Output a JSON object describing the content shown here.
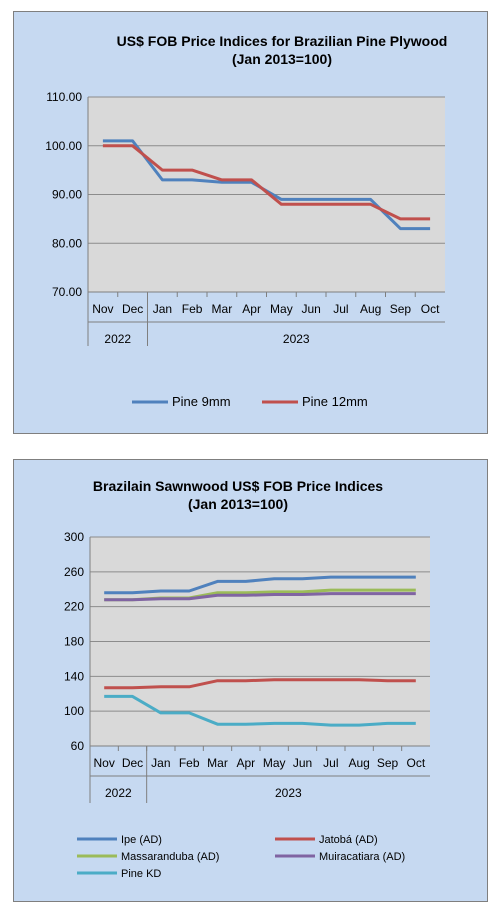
{
  "chart_data": [
    {
      "type": "line",
      "title": "US$ FOB Price Indices for Brazilian  Pine Plywood",
      "subtitle": "(Jan 2013=100)",
      "categories": [
        "Nov",
        "Dec",
        "Jan",
        "Feb",
        "Mar",
        "Apr",
        "May",
        "Jun",
        "Jul",
        "Aug",
        "Sep",
        "Oct"
      ],
      "year_groups": [
        {
          "label": "2022",
          "count": 2
        },
        {
          "label": "2023",
          "count": 10
        }
      ],
      "yticks": [
        "110.00",
        "100.00",
        "90.00",
        "80.00",
        "70.00"
      ],
      "ylim": [
        70,
        110
      ],
      "grid": true,
      "legend_position": "bottom",
      "series": [
        {
          "name": "Pine 9mm",
          "color": "#4f81bd",
          "values": [
            101,
            101,
            93,
            93,
            92.5,
            92.5,
            89,
            89,
            89,
            89,
            83,
            83
          ]
        },
        {
          "name": "Pine 12mm",
          "color": "#c0504d",
          "values": [
            100,
            100,
            95,
            95,
            93,
            93,
            88,
            88,
            88,
            88,
            85,
            85
          ]
        }
      ]
    },
    {
      "type": "line",
      "title": "Brazilain Sawnwood US$ FOB Price Indices",
      "subtitle": "(Jan 2013=100)",
      "categories": [
        "Nov",
        "Dec",
        "Jan",
        "Feb",
        "Mar",
        "Apr",
        "May",
        "Jun",
        "Jul",
        "Aug",
        "Sep",
        "Oct"
      ],
      "year_groups": [
        {
          "label": "2022",
          "count": 2
        },
        {
          "label": "2023",
          "count": 10
        }
      ],
      "yticks": [
        "300",
        "260",
        "220",
        "180",
        "140",
        "100",
        "60"
      ],
      "ylim": [
        60,
        300
      ],
      "grid": true,
      "legend_position": "bottom",
      "series": [
        {
          "name": "Ipe (AD)",
          "color": "#4f81bd",
          "values": [
            236,
            236,
            238,
            238,
            249,
            249,
            252,
            252,
            254,
            254,
            254,
            254
          ]
        },
        {
          "name": "Jatobá (AD)",
          "color": "#c0504d",
          "values": [
            127,
            127,
            128,
            128,
            135,
            135,
            136,
            136,
            136,
            136,
            135,
            135
          ]
        },
        {
          "name": "Massaranduba (AD)",
          "color": "#9bbb59",
          "values": [
            228,
            228,
            230,
            230,
            236,
            236,
            237,
            237,
            239,
            239,
            239,
            239
          ]
        },
        {
          "name": "Muiracatiara (AD)",
          "color": "#8064a2",
          "values": [
            228,
            228,
            229,
            229,
            233,
            233,
            234,
            234,
            235,
            235,
            235,
            235
          ]
        },
        {
          "name": "Pine KD",
          "color": "#4bacc6",
          "values": [
            117,
            117,
            98,
            98,
            85,
            85,
            86,
            86,
            84,
            84,
            86,
            86
          ]
        }
      ]
    }
  ]
}
